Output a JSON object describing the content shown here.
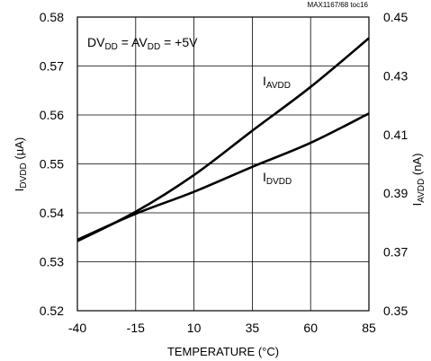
{
  "chart_data": {
    "type": "line",
    "toc_label": "MAX1167/68 toc16",
    "xlabel": "TEMPERATURE (°C)",
    "ylabel_main": "I",
    "ylabel_sub": "DVDD",
    "ylabel_unit": " (µA)",
    "y2label_main": "I",
    "y2label_sub": "AVDD",
    "y2label_unit": " (nA)",
    "xlim": [
      -40,
      85
    ],
    "ylim": [
      0.52,
      0.58
    ],
    "y2lim": [
      0.35,
      0.45
    ],
    "x_ticks": [
      -40,
      -15,
      10,
      35,
      60,
      85
    ],
    "y_ticks": [
      0.52,
      0.53,
      0.54,
      0.55,
      0.56,
      0.57,
      0.58
    ],
    "y2_ticks": [
      0.35,
      0.37,
      0.39,
      0.41,
      0.43,
      0.45
    ],
    "x_tick_labels": [
      "-40",
      "-15",
      "10",
      "35",
      "60",
      "85"
    ],
    "y_tick_labels": [
      "0.52",
      "0.53",
      "0.54",
      "0.55",
      "0.56",
      "0.57",
      "0.58"
    ],
    "y2_tick_labels": [
      "0.35",
      "0.37",
      "0.39",
      "0.41",
      "0.43",
      "0.45"
    ],
    "grid": true,
    "condition": {
      "dv": "DV",
      "dv_sub": "DD",
      "mid": " = AV",
      "av_sub": "DD",
      "val": " = +5V"
    },
    "series": [
      {
        "name": "I_AVDD",
        "label_main": "I",
        "label_sub": "AVDD",
        "axis": "right",
        "x": [
          -40,
          -15,
          10,
          35,
          60,
          85
        ],
        "values": [
          0.3737,
          0.3837,
          0.3962,
          0.4113,
          0.4262,
          0.4428
        ]
      },
      {
        "name": "I_DVDD",
        "label_main": "I",
        "label_sub": "DVDD",
        "axis": "left",
        "x": [
          -40,
          -15,
          10,
          35,
          60,
          85
        ],
        "values": [
          0.5345,
          0.5398,
          0.5443,
          0.5494,
          0.5543,
          0.5603
        ]
      }
    ]
  }
}
